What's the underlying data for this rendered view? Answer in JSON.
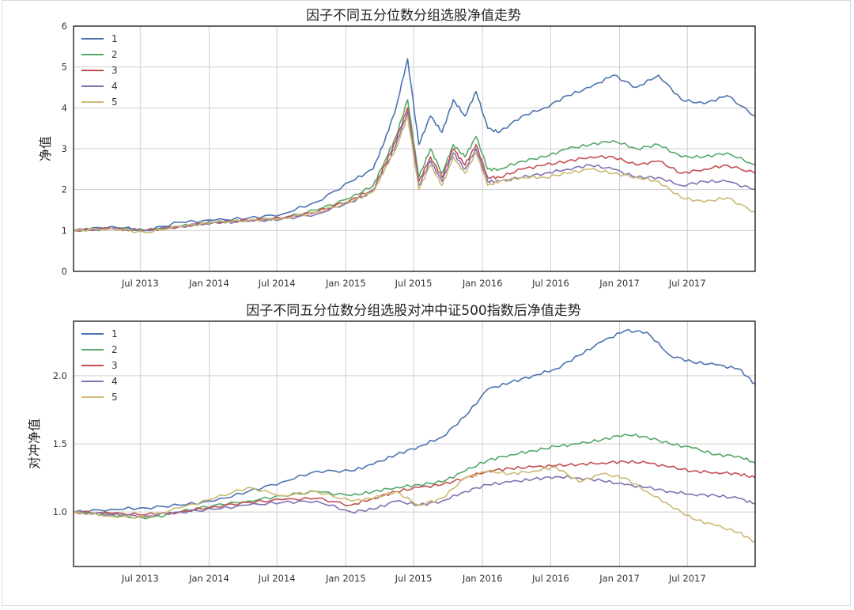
{
  "chart_data": [
    {
      "type": "line",
      "title": "因子不同五分位数分组选股净值走势",
      "xlabel": "",
      "ylabel": "净值",
      "ylim": [
        0,
        6
      ],
      "yticks": [
        "0",
        "1",
        "2",
        "3",
        "4",
        "5",
        "6"
      ],
      "xlim": [
        "2013-01-04",
        "2017-12-29"
      ],
      "xticks": [
        "Jul 2013",
        "Jan 2014",
        "Jul 2014",
        "Jan 2015",
        "Jul 2015",
        "Jan 2016",
        "Jul 2016",
        "Jan 2017",
        "Jul 2017"
      ],
      "grid": true,
      "legend": "top-left",
      "x": [
        "2013-01",
        "2013-04",
        "2013-07",
        "2013-10",
        "2014-01",
        "2014-04",
        "2014-07",
        "2014-10",
        "2015-01",
        "2015-03",
        "2015-04",
        "2015-05",
        "2015-06",
        "2015-07",
        "2015-08",
        "2015-09",
        "2015-10",
        "2015-11",
        "2015-12",
        "2016-01",
        "2016-02",
        "2016-04",
        "2016-06",
        "2016-08",
        "2016-10",
        "2016-12",
        "2017-02",
        "2017-04",
        "2017-06",
        "2017-08",
        "2017-10",
        "2017-12"
      ],
      "series": [
        {
          "name": "1",
          "color": "#4c72b0",
          "values": [
            1.0,
            1.1,
            1.0,
            1.2,
            1.25,
            1.3,
            1.4,
            1.7,
            2.2,
            2.5,
            3.2,
            4.0,
            5.2,
            3.1,
            3.8,
            3.4,
            4.2,
            3.8,
            4.4,
            3.5,
            3.4,
            3.8,
            4.0,
            4.3,
            4.5,
            4.8,
            4.5,
            4.8,
            4.2,
            4.1,
            4.3,
            3.8
          ]
        },
        {
          "name": "2",
          "color": "#55a868",
          "values": [
            1.0,
            1.05,
            1.0,
            1.1,
            1.2,
            1.25,
            1.3,
            1.5,
            1.8,
            2.1,
            2.7,
            3.3,
            4.2,
            2.3,
            3.0,
            2.4,
            3.1,
            2.8,
            3.3,
            2.5,
            2.5,
            2.7,
            2.8,
            3.0,
            3.1,
            3.2,
            3.0,
            3.1,
            2.8,
            2.8,
            2.9,
            2.6
          ]
        },
        {
          "name": "3",
          "color": "#c44e52",
          "values": [
            1.0,
            1.05,
            1.0,
            1.1,
            1.2,
            1.25,
            1.3,
            1.45,
            1.75,
            2.0,
            2.6,
            3.2,
            4.0,
            2.2,
            2.8,
            2.3,
            3.0,
            2.6,
            3.1,
            2.3,
            2.3,
            2.5,
            2.6,
            2.7,
            2.8,
            2.8,
            2.6,
            2.7,
            2.4,
            2.5,
            2.6,
            2.4
          ]
        },
        {
          "name": "4",
          "color": "#8172b2",
          "values": [
            1.0,
            1.05,
            1.0,
            1.1,
            1.2,
            1.22,
            1.28,
            1.4,
            1.7,
            1.95,
            2.5,
            3.1,
            3.9,
            2.1,
            2.7,
            2.2,
            2.9,
            2.5,
            3.0,
            2.2,
            2.2,
            2.3,
            2.4,
            2.5,
            2.6,
            2.5,
            2.3,
            2.3,
            2.1,
            2.2,
            2.2,
            2.0
          ]
        },
        {
          "name": "5",
          "color": "#ccb974",
          "values": [
            1.0,
            1.05,
            0.95,
            1.1,
            1.2,
            1.25,
            1.3,
            1.45,
            1.7,
            1.95,
            2.5,
            3.0,
            3.8,
            2.0,
            2.6,
            2.1,
            2.8,
            2.4,
            2.9,
            2.1,
            2.2,
            2.3,
            2.3,
            2.4,
            2.5,
            2.4,
            2.3,
            2.2,
            1.8,
            1.7,
            1.8,
            1.45
          ]
        }
      ]
    },
    {
      "type": "line",
      "title": "因子不同五分位数分组选股对冲中证500指数后净值走势",
      "xlabel": "",
      "ylabel": "对冲净值",
      "ylim": [
        0.6,
        2.4
      ],
      "yticks": [
        "1.0",
        "1.5",
        "2.0"
      ],
      "yticks_values": [
        1.0,
        1.5,
        2.0
      ],
      "xlim": [
        "2013-01-04",
        "2017-12-29"
      ],
      "xticks": [
        "Jul 2013",
        "Jan 2014",
        "Jul 2014",
        "Jan 2015",
        "Jul 2015",
        "Jan 2016",
        "Jul 2016",
        "Jan 2017",
        "Jul 2017"
      ],
      "grid": true,
      "legend": "top-left",
      "x": [
        "2013-01",
        "2013-04",
        "2013-07",
        "2013-10",
        "2014-01",
        "2014-04",
        "2014-07",
        "2014-10",
        "2015-01",
        "2015-03",
        "2015-05",
        "2015-07",
        "2015-09",
        "2015-11",
        "2016-01",
        "2016-03",
        "2016-05",
        "2016-07",
        "2016-09",
        "2016-11",
        "2017-01",
        "2017-03",
        "2017-05",
        "2017-07",
        "2017-09",
        "2017-11",
        "2017-12"
      ],
      "series": [
        {
          "name": "1",
          "color": "#4c72b0",
          "values": [
            1.0,
            1.02,
            1.03,
            1.05,
            1.08,
            1.15,
            1.22,
            1.3,
            1.3,
            1.35,
            1.42,
            1.48,
            1.55,
            1.7,
            1.9,
            1.95,
            2.0,
            2.05,
            2.15,
            2.25,
            2.33,
            2.32,
            2.15,
            2.1,
            2.08,
            2.05,
            1.94
          ]
        },
        {
          "name": "2",
          "color": "#55a868",
          "values": [
            1.0,
            0.98,
            0.95,
            1.0,
            1.05,
            1.08,
            1.12,
            1.15,
            1.12,
            1.15,
            1.18,
            1.2,
            1.22,
            1.3,
            1.38,
            1.42,
            1.45,
            1.48,
            1.5,
            1.53,
            1.57,
            1.55,
            1.5,
            1.47,
            1.42,
            1.41,
            1.36
          ]
        },
        {
          "name": "3",
          "color": "#c44e52",
          "values": [
            1.0,
            0.99,
            0.98,
            1.0,
            1.04,
            1.07,
            1.09,
            1.1,
            1.05,
            1.1,
            1.15,
            1.18,
            1.2,
            1.25,
            1.3,
            1.32,
            1.33,
            1.34,
            1.35,
            1.36,
            1.37,
            1.36,
            1.33,
            1.3,
            1.29,
            1.28,
            1.25
          ]
        },
        {
          "name": "4",
          "color": "#8172b2",
          "values": [
            1.0,
            0.98,
            0.97,
            1.0,
            1.02,
            1.05,
            1.07,
            1.08,
            1.0,
            1.02,
            1.08,
            1.05,
            1.08,
            1.15,
            1.2,
            1.22,
            1.24,
            1.26,
            1.25,
            1.23,
            1.2,
            1.18,
            1.15,
            1.13,
            1.12,
            1.1,
            1.06
          ]
        },
        {
          "name": "5",
          "color": "#ccb974",
          "values": [
            1.0,
            0.97,
            0.96,
            1.03,
            1.1,
            1.18,
            1.12,
            1.15,
            1.08,
            1.1,
            1.15,
            1.05,
            1.1,
            1.25,
            1.3,
            1.28,
            1.3,
            1.33,
            1.22,
            1.28,
            1.25,
            1.15,
            1.05,
            0.95,
            0.9,
            0.85,
            0.78
          ]
        }
      ]
    }
  ]
}
